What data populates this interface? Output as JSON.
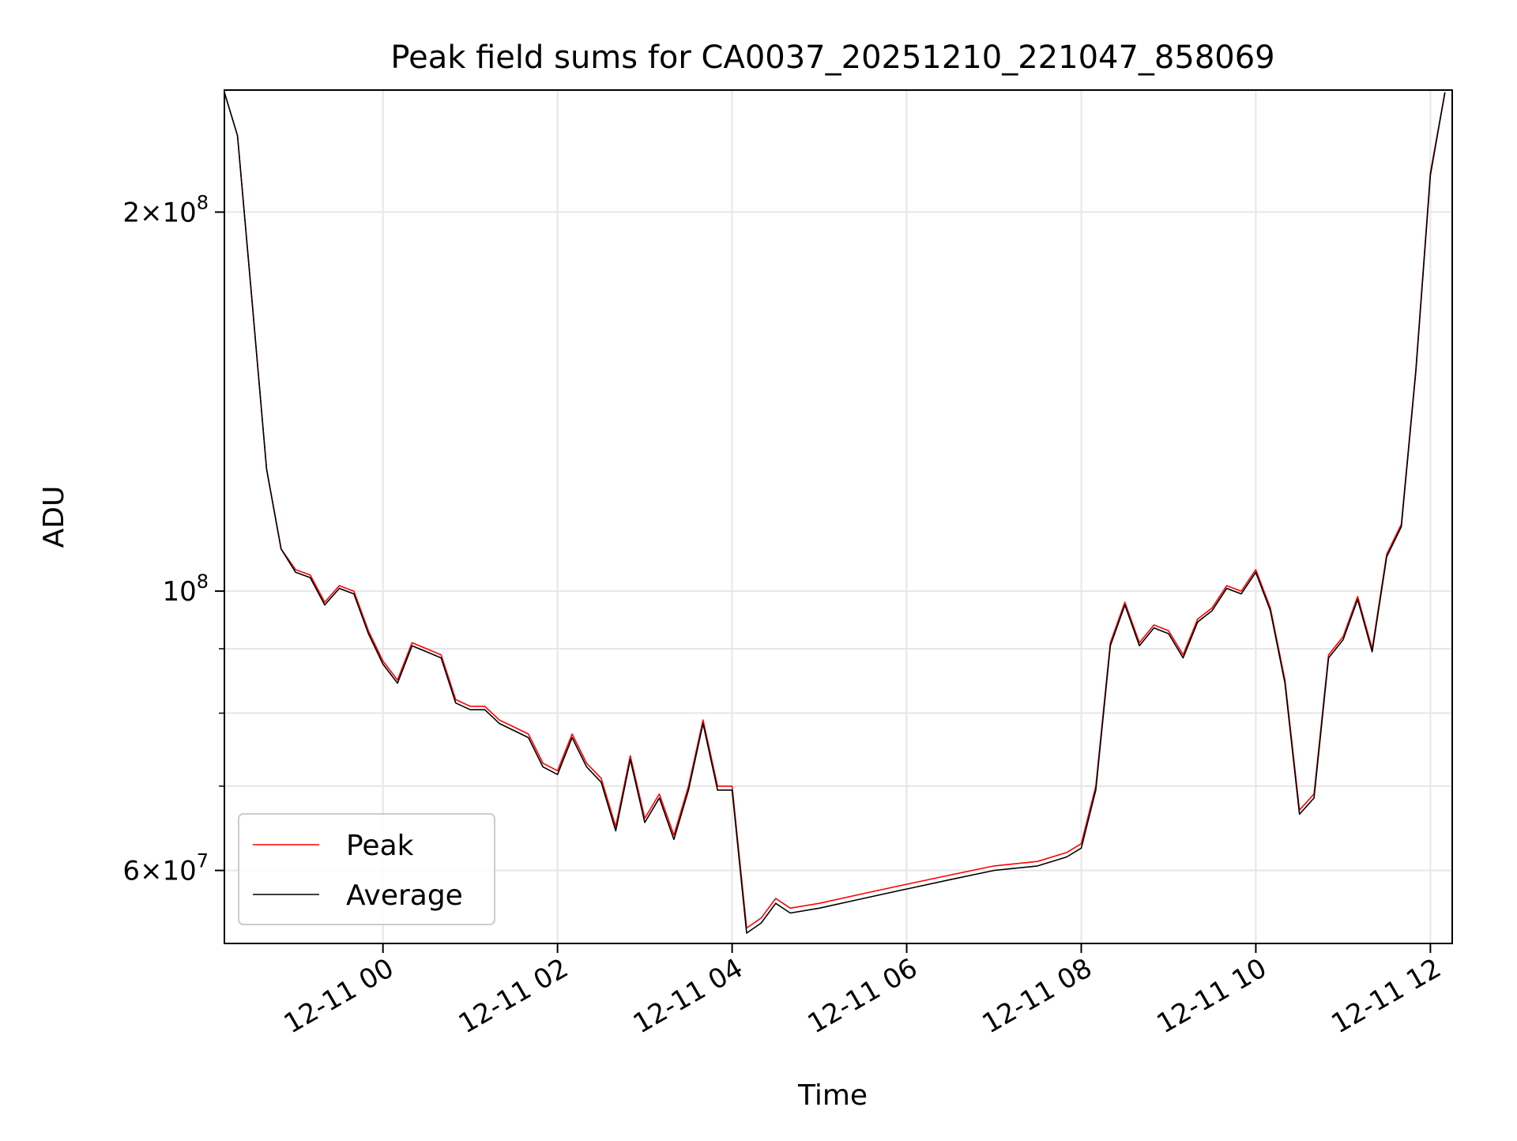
{
  "chart_data": {
    "type": "line",
    "title": "Peak field sums for CA0037_20251210_221047_858069",
    "xlabel": "Time",
    "ylabel": "ADU",
    "yscale": "log",
    "grid": true,
    "legend_position": "lower-left",
    "xlim": [
      "2025-12-10 22:11",
      "2025-12-11 12:15"
    ],
    "ylim": [
      52500000,
      250000000
    ],
    "x_ticks": [
      {
        "value": "2025-12-11 00:00",
        "label": "12-11 00"
      },
      {
        "value": "2025-12-11 02:00",
        "label": "12-11 02"
      },
      {
        "value": "2025-12-11 04:00",
        "label": "12-11 04"
      },
      {
        "value": "2025-12-11 06:00",
        "label": "12-11 06"
      },
      {
        "value": "2025-12-11 08:00",
        "label": "12-11 08"
      },
      {
        "value": "2025-12-11 10:00",
        "label": "12-11 10"
      },
      {
        "value": "2025-12-11 12:00",
        "label": "12-11 12"
      }
    ],
    "y_major_ticks": [
      {
        "value": 60000000,
        "base": "6×10",
        "exp": "7"
      },
      {
        "value": 100000000,
        "base": "10",
        "exp": "8"
      },
      {
        "value": 200000000,
        "base": "2×10",
        "exp": "8"
      }
    ],
    "y_minor_ticks": [
      70000000,
      80000000,
      90000000
    ],
    "series": [
      {
        "name": "Peak",
        "color": "#ff0000",
        "points": [
          [
            "2025-12-10 22:11",
            249000000
          ],
          [
            "2025-12-10 22:20",
            230000000
          ],
          [
            "2025-12-10 22:30",
            170000000
          ],
          [
            "2025-12-10 22:40",
            125000000
          ],
          [
            "2025-12-10 22:50",
            108000000
          ],
          [
            "2025-12-10 23:00",
            104000000
          ],
          [
            "2025-12-10 23:10",
            103000000
          ],
          [
            "2025-12-10 23:20",
            98000000
          ],
          [
            "2025-12-10 23:30",
            101000000
          ],
          [
            "2025-12-10 23:40",
            100000000
          ],
          [
            "2025-12-10 23:50",
            93000000
          ],
          [
            "2025-12-11 00:00",
            88000000
          ],
          [
            "2025-12-11 00:10",
            85000000
          ],
          [
            "2025-12-11 00:20",
            91000000
          ],
          [
            "2025-12-11 00:30",
            90000000
          ],
          [
            "2025-12-11 00:40",
            89000000
          ],
          [
            "2025-12-11 00:50",
            82000000
          ],
          [
            "2025-12-11 01:00",
            81000000
          ],
          [
            "2025-12-11 01:10",
            81000000
          ],
          [
            "2025-12-11 01:20",
            79000000
          ],
          [
            "2025-12-11 01:30",
            78000000
          ],
          [
            "2025-12-11 01:40",
            77000000
          ],
          [
            "2025-12-11 01:50",
            73000000
          ],
          [
            "2025-12-11 02:00",
            72000000
          ],
          [
            "2025-12-11 02:10",
            77000000
          ],
          [
            "2025-12-11 02:20",
            73000000
          ],
          [
            "2025-12-11 02:30",
            71000000
          ],
          [
            "2025-12-11 02:40",
            65000000
          ],
          [
            "2025-12-11 02:50",
            74000000
          ],
          [
            "2025-12-11 03:00",
            66000000
          ],
          [
            "2025-12-11 03:10",
            69000000
          ],
          [
            "2025-12-11 03:20",
            64000000
          ],
          [
            "2025-12-11 03:30",
            70000000
          ],
          [
            "2025-12-11 03:40",
            79000000
          ],
          [
            "2025-12-11 03:50",
            70000000
          ],
          [
            "2025-12-11 04:00",
            70000000
          ],
          [
            "2025-12-11 04:10",
            54000000
          ],
          [
            "2025-12-11 04:20",
            55000000
          ],
          [
            "2025-12-11 04:30",
            57000000
          ],
          [
            "2025-12-11 04:40",
            56000000
          ],
          [
            "2025-12-11 05:00",
            56500000
          ],
          [
            "2025-12-11 05:30",
            57500000
          ],
          [
            "2025-12-11 06:00",
            58500000
          ],
          [
            "2025-12-11 06:30",
            59500000
          ],
          [
            "2025-12-11 07:00",
            60500000
          ],
          [
            "2025-12-11 07:30",
            61000000
          ],
          [
            "2025-12-11 07:50",
            62000000
          ],
          [
            "2025-12-11 08:00",
            63000000
          ],
          [
            "2025-12-11 08:10",
            70000000
          ],
          [
            "2025-12-11 08:20",
            91000000
          ],
          [
            "2025-12-11 08:30",
            98000000
          ],
          [
            "2025-12-11 08:40",
            91000000
          ],
          [
            "2025-12-11 08:50",
            94000000
          ],
          [
            "2025-12-11 09:00",
            93000000
          ],
          [
            "2025-12-11 09:10",
            89000000
          ],
          [
            "2025-12-11 09:20",
            95000000
          ],
          [
            "2025-12-11 09:30",
            97000000
          ],
          [
            "2025-12-11 09:40",
            101000000
          ],
          [
            "2025-12-11 09:50",
            100000000
          ],
          [
            "2025-12-11 10:00",
            104000000
          ],
          [
            "2025-12-11 10:10",
            97000000
          ],
          [
            "2025-12-11 10:20",
            85000000
          ],
          [
            "2025-12-11 10:30",
            67000000
          ],
          [
            "2025-12-11 10:40",
            69000000
          ],
          [
            "2025-12-11 10:50",
            89000000
          ],
          [
            "2025-12-11 11:00",
            92000000
          ],
          [
            "2025-12-11 11:10",
            99000000
          ],
          [
            "2025-12-11 11:20",
            90000000
          ],
          [
            "2025-12-11 11:30",
            107000000
          ],
          [
            "2025-12-11 11:40",
            113000000
          ],
          [
            "2025-12-11 11:50",
            150000000
          ],
          [
            "2025-12-11 12:00",
            215000000
          ],
          [
            "2025-12-11 12:10",
            249000000
          ]
        ]
      },
      {
        "name": "Average",
        "color": "#000000",
        "points": [
          [
            "2025-12-10 22:11",
            249000000
          ],
          [
            "2025-12-10 22:20",
            230000000
          ],
          [
            "2025-12-10 22:30",
            170000000
          ],
          [
            "2025-12-10 22:40",
            125000000
          ],
          [
            "2025-12-10 22:50",
            108000000
          ],
          [
            "2025-12-10 23:00",
            103500000
          ],
          [
            "2025-12-10 23:10",
            102500000
          ],
          [
            "2025-12-10 23:20",
            97500000
          ],
          [
            "2025-12-10 23:30",
            100500000
          ],
          [
            "2025-12-10 23:40",
            99500000
          ],
          [
            "2025-12-10 23:50",
            92500000
          ],
          [
            "2025-12-11 00:00",
            87500000
          ],
          [
            "2025-12-11 00:10",
            84500000
          ],
          [
            "2025-12-11 00:20",
            90500000
          ],
          [
            "2025-12-11 00:30",
            89500000
          ],
          [
            "2025-12-11 00:40",
            88500000
          ],
          [
            "2025-12-11 00:50",
            81500000
          ],
          [
            "2025-12-11 01:00",
            80500000
          ],
          [
            "2025-12-11 01:10",
            80500000
          ],
          [
            "2025-12-11 01:20",
            78500000
          ],
          [
            "2025-12-11 01:30",
            77500000
          ],
          [
            "2025-12-11 01:40",
            76500000
          ],
          [
            "2025-12-11 01:50",
            72500000
          ],
          [
            "2025-12-11 02:00",
            71500000
          ],
          [
            "2025-12-11 02:10",
            76500000
          ],
          [
            "2025-12-11 02:20",
            72500000
          ],
          [
            "2025-12-11 02:30",
            70500000
          ],
          [
            "2025-12-11 02:40",
            64500000
          ],
          [
            "2025-12-11 02:50",
            73500000
          ],
          [
            "2025-12-11 03:00",
            65500000
          ],
          [
            "2025-12-11 03:10",
            68500000
          ],
          [
            "2025-12-11 03:20",
            63500000
          ],
          [
            "2025-12-11 03:30",
            69500000
          ],
          [
            "2025-12-11 03:40",
            78500000
          ],
          [
            "2025-12-11 03:50",
            69500000
          ],
          [
            "2025-12-11 04:00",
            69500000
          ],
          [
            "2025-12-11 04:10",
            53500000
          ],
          [
            "2025-12-11 04:20",
            54500000
          ],
          [
            "2025-12-11 04:30",
            56500000
          ],
          [
            "2025-12-11 04:40",
            55500000
          ],
          [
            "2025-12-11 05:00",
            56000000
          ],
          [
            "2025-12-11 05:30",
            57000000
          ],
          [
            "2025-12-11 06:00",
            58000000
          ],
          [
            "2025-12-11 06:30",
            59000000
          ],
          [
            "2025-12-11 07:00",
            60000000
          ],
          [
            "2025-12-11 07:30",
            60500000
          ],
          [
            "2025-12-11 07:50",
            61500000
          ],
          [
            "2025-12-11 08:00",
            62500000
          ],
          [
            "2025-12-11 08:10",
            69500000
          ],
          [
            "2025-12-11 08:20",
            90500000
          ],
          [
            "2025-12-11 08:30",
            97500000
          ],
          [
            "2025-12-11 08:40",
            90500000
          ],
          [
            "2025-12-11 08:50",
            93500000
          ],
          [
            "2025-12-11 09:00",
            92500000
          ],
          [
            "2025-12-11 09:10",
            88500000
          ],
          [
            "2025-12-11 09:20",
            94500000
          ],
          [
            "2025-12-11 09:30",
            96500000
          ],
          [
            "2025-12-11 09:40",
            100500000
          ],
          [
            "2025-12-11 09:50",
            99500000
          ],
          [
            "2025-12-11 10:00",
            103500000
          ],
          [
            "2025-12-11 10:10",
            96500000
          ],
          [
            "2025-12-11 10:20",
            84500000
          ],
          [
            "2025-12-11 10:30",
            66500000
          ],
          [
            "2025-12-11 10:40",
            68500000
          ],
          [
            "2025-12-11 10:50",
            88500000
          ],
          [
            "2025-12-11 11:00",
            91500000
          ],
          [
            "2025-12-11 11:10",
            98500000
          ],
          [
            "2025-12-11 11:20",
            89500000
          ],
          [
            "2025-12-11 11:30",
            106500000
          ],
          [
            "2025-12-11 11:40",
            112500000
          ],
          [
            "2025-12-11 11:50",
            149500000
          ],
          [
            "2025-12-11 12:00",
            214000000
          ],
          [
            "2025-12-11 12:10",
            249000000
          ]
        ]
      }
    ]
  }
}
